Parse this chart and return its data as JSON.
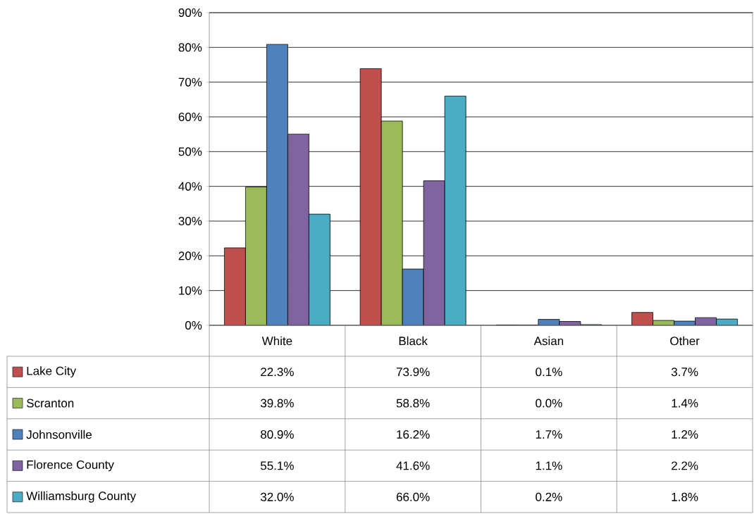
{
  "chart_data": {
    "type": "bar",
    "categories": [
      "White",
      "Black",
      "Asian",
      "Other"
    ],
    "series": [
      {
        "name": "Lake City",
        "color": "#c0504d",
        "values": [
          22.3,
          73.9,
          0.1,
          3.7
        ],
        "value_labels": [
          "22.3%",
          "73.9%",
          "0.1%",
          "3.7%"
        ]
      },
      {
        "name": "Scranton",
        "color": "#9bbb59",
        "values": [
          39.8,
          58.8,
          0.0,
          1.4
        ],
        "value_labels": [
          "39.8%",
          "58.8%",
          "0.0%",
          "1.4%"
        ]
      },
      {
        "name": "Johnsonville",
        "color": "#4f81bd",
        "values": [
          80.9,
          16.2,
          1.7,
          1.2
        ],
        "value_labels": [
          "80.9%",
          "16.2%",
          "1.7%",
          "1.2%"
        ]
      },
      {
        "name": "Florence County",
        "color": "#8064a2",
        "values": [
          55.1,
          41.6,
          1.1,
          2.2
        ],
        "value_labels": [
          "55.1%",
          "41.6%",
          "1.1%",
          "2.2%"
        ]
      },
      {
        "name": "Williamsburg County",
        "color": "#4bacc6",
        "values": [
          32.0,
          66.0,
          0.2,
          1.8
        ],
        "value_labels": [
          "32.0%",
          "66.0%",
          "0.2%",
          "1.8%"
        ]
      }
    ],
    "ylim": [
      0,
      90
    ],
    "yticks": [
      {
        "value": 0,
        "label": "0%"
      },
      {
        "value": 10,
        "label": "10%"
      },
      {
        "value": 20,
        "label": "20%"
      },
      {
        "value": 30,
        "label": "30%"
      },
      {
        "value": 40,
        "label": "40%"
      },
      {
        "value": 50,
        "label": "50%"
      },
      {
        "value": 60,
        "label": "60%"
      },
      {
        "value": 70,
        "label": "70%"
      },
      {
        "value": 80,
        "label": "80%"
      },
      {
        "value": 90,
        "label": "90%"
      }
    ],
    "grid": "y",
    "legend": "bottom left"
  }
}
